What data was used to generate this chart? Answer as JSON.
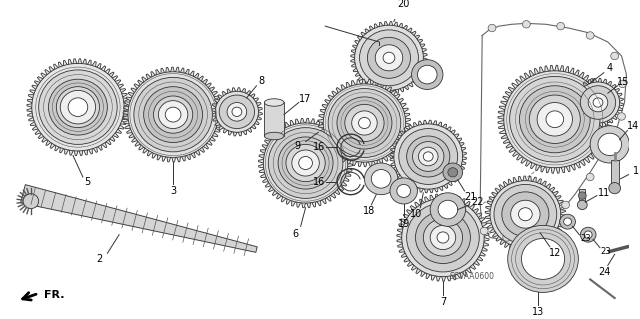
{
  "background_color": "#ffffff",
  "fig_width": 6.4,
  "fig_height": 3.19,
  "dpi": 100,
  "watermark": "SCVAA0600",
  "arrow_label": "FR."
}
